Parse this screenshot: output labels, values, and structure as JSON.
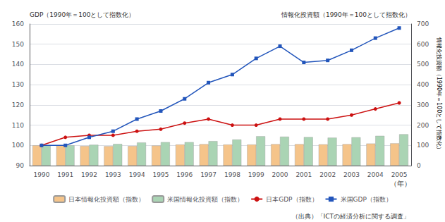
{
  "chart_data": {
    "type": "bar",
    "categories": [
      "1990",
      "1991",
      "1992",
      "1993",
      "1994",
      "1995",
      "1996",
      "1997",
      "1998",
      "1999",
      "2000",
      "2001",
      "2002",
      "2003",
      "2004",
      "2005"
    ],
    "xlabel": "（年）",
    "ylabel": "GDP（1990年＝100として指数化）",
    "y2label": "情報化投資額（1990年＝100として指数化）",
    "annotations": [
      "情報化投資額（1990年＝100として指数化）",
      "（出典）「ICTの経済分析に関する調査」"
    ],
    "ylim": [
      90,
      160
    ],
    "yticks": [
      90,
      100,
      110,
      120,
      130,
      140,
      150,
      160
    ],
    "y2lim": [
      0,
      700
    ],
    "y2ticks": [
      0,
      100,
      200,
      300,
      400,
      500,
      600,
      700
    ],
    "grid": true,
    "legend": "bottom",
    "series": [
      {
        "name": "日本情報化投資額（指数）",
        "type": "bar",
        "axis": "y2",
        "color": "#f5c48a",
        "values": [
          100,
          100,
          97,
          96,
          97,
          99,
          104,
          106,
          104,
          104,
          106,
          106,
          105,
          106,
          109,
          110
        ]
      },
      {
        "name": "米国情報化投資額（指数）",
        "type": "bar",
        "axis": "y2",
        "color": "#aad4b4",
        "values": [
          100,
          100,
          103,
          107,
          114,
          116,
          116,
          121,
          129,
          145,
          143,
          141,
          138,
          140,
          147,
          155
        ]
      },
      {
        "name": "日本GDP（指数）",
        "type": "line",
        "color": "#cc1111",
        "marker": "circle",
        "values": [
          100,
          104,
          105,
          105,
          107,
          108,
          111,
          113,
          110,
          110,
          113,
          113,
          113,
          115,
          118,
          121
        ]
      },
      {
        "name": "米国GDP（指数）",
        "type": "line",
        "color": "#2255bb",
        "marker": "square",
        "values": [
          100,
          100,
          104,
          107,
          113,
          117,
          123,
          131,
          135,
          143,
          149,
          141,
          142,
          147,
          153,
          158
        ]
      }
    ]
  }
}
